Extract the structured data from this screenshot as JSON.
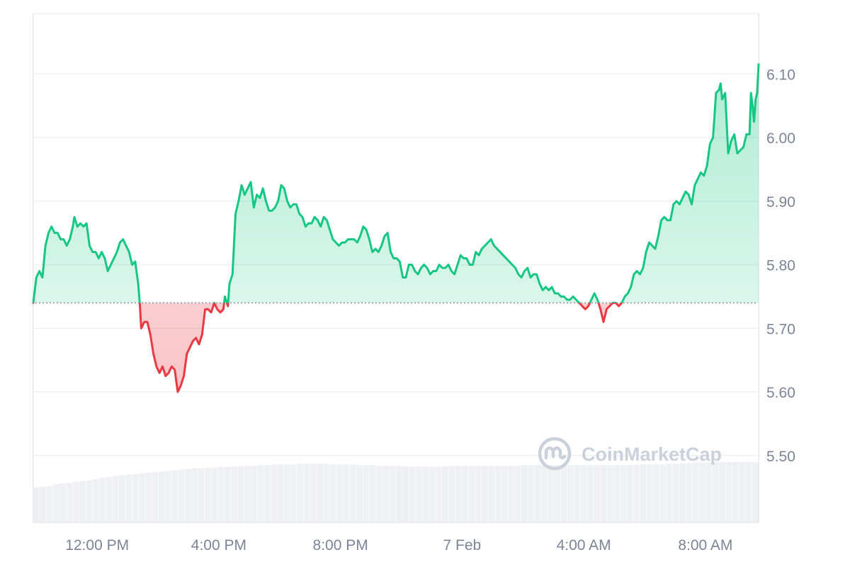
{
  "chart_data": {
    "type": "line",
    "title": "",
    "xlabel": "",
    "ylabel": "",
    "ylim": [
      5.395,
      6.195
    ],
    "baseline": 5.74,
    "xlim": [
      9.9,
      33.75
    ],
    "x_unit": "hours since 00:00 of the first day (24 = 7 Feb 00:00)",
    "colors": {
      "up": "#16c784",
      "down": "#ea3943",
      "grid": "#eef0f3",
      "axis": "#e6e8ec",
      "baseline": "#8a919e",
      "volume": "#eef0f3"
    },
    "y_ticks": [
      {
        "value": 5.5,
        "label": "5.50"
      },
      {
        "value": 5.6,
        "label": "5.60"
      },
      {
        "value": 5.7,
        "label": "5.70"
      },
      {
        "value": 5.8,
        "label": "5.80"
      },
      {
        "value": 5.9,
        "label": "5.90"
      },
      {
        "value": 6.0,
        "label": "6.00"
      },
      {
        "value": 6.1,
        "label": "6.10"
      }
    ],
    "x_ticks": [
      {
        "value": 12,
        "label": "12:00 PM"
      },
      {
        "value": 16,
        "label": "4:00 PM"
      },
      {
        "value": 20,
        "label": "8:00 PM"
      },
      {
        "value": 24,
        "label": "7 Feb"
      },
      {
        "value": 28,
        "label": "4:00 AM"
      },
      {
        "value": 32,
        "label": "8:00 AM"
      }
    ],
    "series": [
      {
        "points": [
          [
            9.9,
            5.74
          ],
          [
            10.0,
            5.78
          ],
          [
            10.1,
            5.79
          ],
          [
            10.2,
            5.78
          ],
          [
            10.3,
            5.83
          ],
          [
            10.4,
            5.85
          ],
          [
            10.5,
            5.86
          ],
          [
            10.6,
            5.85
          ],
          [
            10.7,
            5.85
          ],
          [
            10.8,
            5.84
          ],
          [
            10.9,
            5.84
          ],
          [
            11.0,
            5.83
          ],
          [
            11.1,
            5.84
          ],
          [
            11.2,
            5.86
          ],
          [
            11.25,
            5.875
          ],
          [
            11.35,
            5.86
          ],
          [
            11.45,
            5.865
          ],
          [
            11.55,
            5.86
          ],
          [
            11.65,
            5.865
          ],
          [
            11.75,
            5.83
          ],
          [
            11.85,
            5.82
          ],
          [
            11.95,
            5.82
          ],
          [
            12.05,
            5.81
          ],
          [
            12.15,
            5.82
          ],
          [
            12.25,
            5.81
          ],
          [
            12.35,
            5.79
          ],
          [
            12.45,
            5.8
          ],
          [
            12.55,
            5.81
          ],
          [
            12.65,
            5.82
          ],
          [
            12.75,
            5.835
          ],
          [
            12.85,
            5.84
          ],
          [
            12.95,
            5.83
          ],
          [
            13.05,
            5.82
          ],
          [
            13.15,
            5.8
          ],
          [
            13.25,
            5.805
          ],
          [
            13.35,
            5.77
          ],
          [
            13.4,
            5.74
          ],
          [
            13.45,
            5.7
          ],
          [
            13.55,
            5.71
          ],
          [
            13.65,
            5.71
          ],
          [
            13.75,
            5.69
          ],
          [
            13.85,
            5.66
          ],
          [
            13.95,
            5.64
          ],
          [
            14.05,
            5.63
          ],
          [
            14.15,
            5.64
          ],
          [
            14.25,
            5.625
          ],
          [
            14.35,
            5.63
          ],
          [
            14.45,
            5.64
          ],
          [
            14.55,
            5.635
          ],
          [
            14.65,
            5.6
          ],
          [
            14.75,
            5.61
          ],
          [
            14.85,
            5.625
          ],
          [
            14.95,
            5.66
          ],
          [
            15.05,
            5.67
          ],
          [
            15.15,
            5.68
          ],
          [
            15.25,
            5.685
          ],
          [
            15.35,
            5.675
          ],
          [
            15.45,
            5.69
          ],
          [
            15.55,
            5.73
          ],
          [
            15.65,
            5.73
          ],
          [
            15.75,
            5.725
          ],
          [
            15.85,
            5.74
          ],
          [
            15.95,
            5.73
          ],
          [
            16.05,
            5.725
          ],
          [
            16.15,
            5.73
          ],
          [
            16.2,
            5.75
          ],
          [
            16.3,
            5.735
          ],
          [
            16.35,
            5.77
          ],
          [
            16.45,
            5.785
          ],
          [
            16.55,
            5.88
          ],
          [
            16.65,
            5.9
          ],
          [
            16.75,
            5.925
          ],
          [
            16.85,
            5.91
          ],
          [
            16.95,
            5.92
          ],
          [
            17.05,
            5.93
          ],
          [
            17.15,
            5.89
          ],
          [
            17.25,
            5.91
          ],
          [
            17.35,
            5.905
          ],
          [
            17.45,
            5.92
          ],
          [
            17.55,
            5.9
          ],
          [
            17.65,
            5.885
          ],
          [
            17.75,
            5.885
          ],
          [
            17.85,
            5.89
          ],
          [
            17.95,
            5.9
          ],
          [
            18.05,
            5.925
          ],
          [
            18.15,
            5.92
          ],
          [
            18.25,
            5.9
          ],
          [
            18.35,
            5.89
          ],
          [
            18.45,
            5.895
          ],
          [
            18.55,
            5.895
          ],
          [
            18.65,
            5.88
          ],
          [
            18.75,
            5.875
          ],
          [
            18.85,
            5.86
          ],
          [
            18.95,
            5.865
          ],
          [
            19.05,
            5.865
          ],
          [
            19.15,
            5.875
          ],
          [
            19.25,
            5.87
          ],
          [
            19.35,
            5.86
          ],
          [
            19.45,
            5.875
          ],
          [
            19.55,
            5.87
          ],
          [
            19.65,
            5.855
          ],
          [
            19.75,
            5.84
          ],
          [
            19.85,
            5.835
          ],
          [
            19.95,
            5.83
          ],
          [
            20.05,
            5.835
          ],
          [
            20.15,
            5.835
          ],
          [
            20.25,
            5.84
          ],
          [
            20.35,
            5.84
          ],
          [
            20.45,
            5.84
          ],
          [
            20.55,
            5.835
          ],
          [
            20.65,
            5.845
          ],
          [
            20.75,
            5.86
          ],
          [
            20.85,
            5.855
          ],
          [
            20.95,
            5.84
          ],
          [
            21.05,
            5.82
          ],
          [
            21.15,
            5.825
          ],
          [
            21.25,
            5.82
          ],
          [
            21.35,
            5.83
          ],
          [
            21.45,
            5.845
          ],
          [
            21.55,
            5.85
          ],
          [
            21.65,
            5.82
          ],
          [
            21.75,
            5.81
          ],
          [
            21.85,
            5.81
          ],
          [
            21.95,
            5.805
          ],
          [
            22.05,
            5.78
          ],
          [
            22.15,
            5.78
          ],
          [
            22.25,
            5.8
          ],
          [
            22.35,
            5.8
          ],
          [
            22.45,
            5.79
          ],
          [
            22.55,
            5.785
          ],
          [
            22.65,
            5.795
          ],
          [
            22.75,
            5.8
          ],
          [
            22.85,
            5.795
          ],
          [
            22.95,
            5.785
          ],
          [
            23.05,
            5.79
          ],
          [
            23.15,
            5.79
          ],
          [
            23.25,
            5.8
          ],
          [
            23.35,
            5.795
          ],
          [
            23.45,
            5.795
          ],
          [
            23.55,
            5.8
          ],
          [
            23.65,
            5.79
          ],
          [
            23.75,
            5.785
          ],
          [
            23.85,
            5.8
          ],
          [
            23.95,
            5.815
          ],
          [
            24.05,
            5.81
          ],
          [
            24.15,
            5.81
          ],
          [
            24.25,
            5.8
          ],
          [
            24.35,
            5.8
          ],
          [
            24.45,
            5.82
          ],
          [
            24.55,
            5.815
          ],
          [
            24.65,
            5.825
          ],
          [
            24.75,
            5.83
          ],
          [
            24.85,
            5.835
          ],
          [
            24.95,
            5.84
          ],
          [
            25.05,
            5.83
          ],
          [
            25.15,
            5.825
          ],
          [
            25.25,
            5.82
          ],
          [
            25.35,
            5.815
          ],
          [
            25.45,
            5.81
          ],
          [
            25.55,
            5.805
          ],
          [
            25.65,
            5.8
          ],
          [
            25.75,
            5.795
          ],
          [
            25.85,
            5.785
          ],
          [
            25.95,
            5.78
          ],
          [
            26.05,
            5.79
          ],
          [
            26.15,
            5.795
          ],
          [
            26.25,
            5.78
          ],
          [
            26.35,
            5.785
          ],
          [
            26.45,
            5.785
          ],
          [
            26.55,
            5.77
          ],
          [
            26.65,
            5.76
          ],
          [
            26.75,
            5.765
          ],
          [
            26.85,
            5.76
          ],
          [
            26.95,
            5.765
          ],
          [
            27.05,
            5.755
          ],
          [
            27.15,
            5.755
          ],
          [
            27.25,
            5.75
          ],
          [
            27.35,
            5.75
          ],
          [
            27.45,
            5.745
          ],
          [
            27.55,
            5.745
          ],
          [
            27.65,
            5.75
          ],
          [
            27.75,
            5.745
          ],
          [
            27.85,
            5.74
          ],
          [
            27.95,
            5.735
          ],
          [
            28.05,
            5.73
          ],
          [
            28.15,
            5.735
          ],
          [
            28.25,
            5.745
          ],
          [
            28.35,
            5.755
          ],
          [
            28.45,
            5.745
          ],
          [
            28.55,
            5.73
          ],
          [
            28.65,
            5.71
          ],
          [
            28.75,
            5.73
          ],
          [
            28.85,
            5.735
          ],
          [
            28.95,
            5.74
          ],
          [
            29.05,
            5.74
          ],
          [
            29.15,
            5.735
          ],
          [
            29.25,
            5.74
          ],
          [
            29.35,
            5.75
          ],
          [
            29.45,
            5.755
          ],
          [
            29.55,
            5.765
          ],
          [
            29.65,
            5.785
          ],
          [
            29.75,
            5.79
          ],
          [
            29.85,
            5.785
          ],
          [
            29.95,
            5.795
          ],
          [
            30.05,
            5.82
          ],
          [
            30.15,
            5.835
          ],
          [
            30.25,
            5.83
          ],
          [
            30.35,
            5.825
          ],
          [
            30.45,
            5.845
          ],
          [
            30.55,
            5.87
          ],
          [
            30.65,
            5.875
          ],
          [
            30.75,
            5.87
          ],
          [
            30.85,
            5.87
          ],
          [
            30.95,
            5.895
          ],
          [
            31.05,
            5.9
          ],
          [
            31.15,
            5.895
          ],
          [
            31.25,
            5.905
          ],
          [
            31.35,
            5.915
          ],
          [
            31.45,
            5.91
          ],
          [
            31.55,
            5.895
          ],
          [
            31.65,
            5.925
          ],
          [
            31.75,
            5.935
          ],
          [
            31.85,
            5.945
          ],
          [
            31.95,
            5.94
          ],
          [
            32.05,
            5.955
          ],
          [
            32.15,
            5.99
          ],
          [
            32.25,
            6.0
          ],
          [
            32.35,
            6.07
          ],
          [
            32.45,
            6.075
          ],
          [
            32.5,
            6.085
          ],
          [
            32.55,
            6.06
          ],
          [
            32.65,
            6.07
          ],
          [
            32.75,
            5.975
          ],
          [
            32.85,
            5.995
          ],
          [
            32.95,
            6.005
          ],
          [
            33.05,
            5.975
          ],
          [
            33.15,
            5.98
          ],
          [
            33.25,
            5.985
          ],
          [
            33.35,
            6.005
          ],
          [
            33.45,
            6.005
          ],
          [
            33.5,
            6.07
          ],
          [
            33.55,
            6.05
          ],
          [
            33.6,
            6.025
          ],
          [
            33.65,
            6.06
          ],
          [
            33.7,
            6.07
          ],
          [
            33.75,
            6.115
          ]
        ]
      }
    ],
    "volume": [
      5.45,
      5.451,
      5.452,
      5.455,
      5.456,
      5.457,
      5.459,
      5.46,
      5.461,
      5.463,
      5.465,
      5.466,
      5.468,
      5.469,
      5.47,
      5.471,
      5.472,
      5.473,
      5.474,
      5.475,
      5.476,
      5.477,
      5.478,
      5.479,
      5.48,
      5.48,
      5.481,
      5.481,
      5.482,
      5.482,
      5.483,
      5.483,
      5.484,
      5.484,
      5.485,
      5.485,
      5.486,
      5.486,
      5.486,
      5.486,
      5.487,
      5.487,
      5.487,
      5.487,
      5.487,
      5.486,
      5.486,
      5.486,
      5.486,
      5.485,
      5.485,
      5.485,
      5.484,
      5.484,
      5.484,
      5.484,
      5.483,
      5.483,
      5.483,
      5.483,
      5.483,
      5.483,
      5.483,
      5.484,
      5.484,
      5.484,
      5.484,
      5.484,
      5.484,
      5.484,
      5.484,
      5.484,
      5.484,
      5.484,
      5.485,
      5.485,
      5.485,
      5.485,
      5.485,
      5.485,
      5.485,
      5.485,
      5.485,
      5.485,
      5.485,
      5.485,
      5.485,
      5.485,
      5.485,
      5.485,
      5.485,
      5.485,
      5.486,
      5.486,
      5.486,
      5.486,
      5.487,
      5.487,
      5.488,
      5.488,
      5.489,
      5.489,
      5.489,
      5.49,
      5.49,
      5.49,
      5.49,
      5.49,
      5.49,
      5.49
    ],
    "watermark": "CoinMarketCap"
  }
}
